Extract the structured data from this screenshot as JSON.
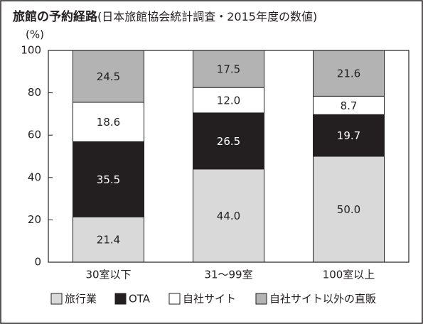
{
  "chart_data": {
    "type": "stacked-bar",
    "title": "旅館の予約経路",
    "subtitle": "(日本旅館協会統計調査・2015年度の数値)",
    "y_unit": "(%)",
    "categories": [
      "30室以下",
      "31～99室",
      "100室以上"
    ],
    "series": [
      {
        "name": "旅行業",
        "color": "#d9d9d9",
        "values": [
          21.4,
          44.0,
          50.0
        ],
        "value_labels": [
          "21.4",
          "44.0",
          "50.0"
        ]
      },
      {
        "name": "OTA",
        "color": "#231f20",
        "values": [
          35.5,
          26.5,
          19.7
        ]
      },
      {
        "name": "自社サイト",
        "color": "#ffffff",
        "values": [
          18.6,
          12.0,
          8.7
        ],
        "value_labels": [
          "18.6",
          "12.0",
          "8.7"
        ]
      },
      {
        "name": "自社サイト以外の直販",
        "color": "#b3b3b3",
        "values": [
          24.5,
          17.5,
          21.6
        ]
      }
    ],
    "ylim": [
      0,
      100
    ],
    "yticks": [
      0,
      20,
      40,
      60,
      80,
      100
    ]
  }
}
